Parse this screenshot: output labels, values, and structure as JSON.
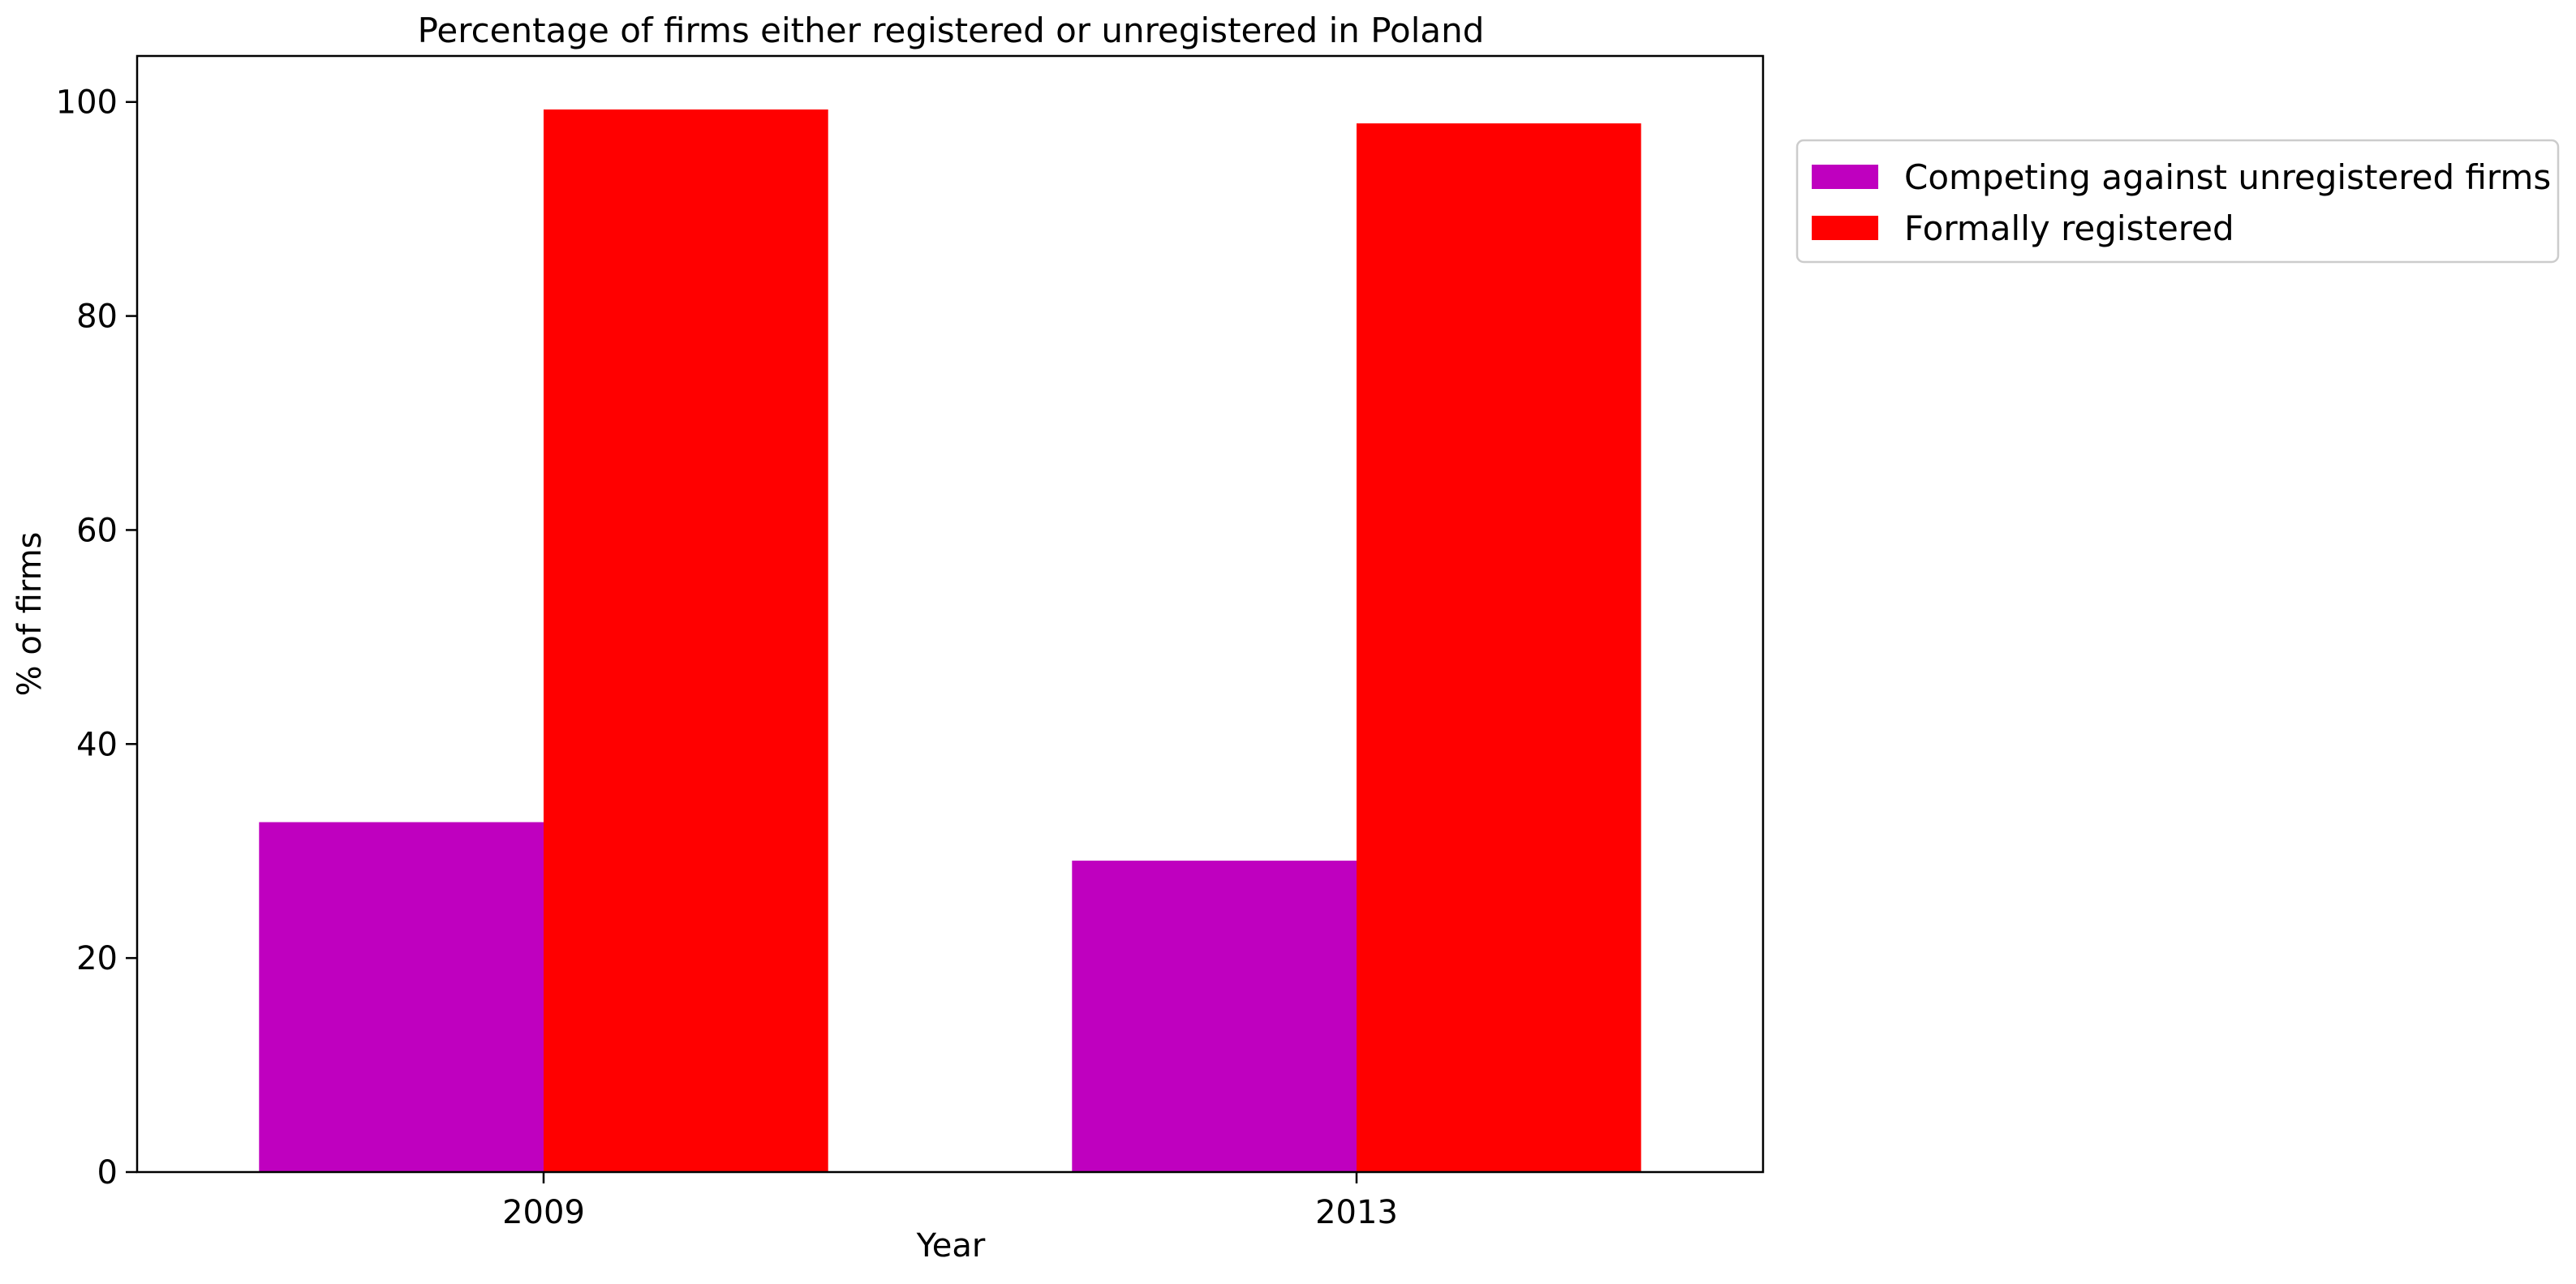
{
  "chart_data": {
    "type": "bar",
    "title": "Percentage of firms either registered or unregistered in Poland",
    "xlabel": "Year",
    "ylabel": "% of firms",
    "categories": [
      "2009",
      "2013"
    ],
    "series": [
      {
        "name": "Competing against unregistered firms",
        "values": [
          32.7,
          29.1
        ],
        "color": "#bf00bf"
      },
      {
        "name": "Formally registered",
        "values": [
          99.3,
          98.0
        ],
        "color": "#ff0000"
      }
    ],
    "ylim": [
      0,
      104.3
    ],
    "yticks": [
      0,
      20,
      40,
      60,
      80,
      100
    ],
    "grid": false,
    "legend_position": "outside-top-right"
  }
}
